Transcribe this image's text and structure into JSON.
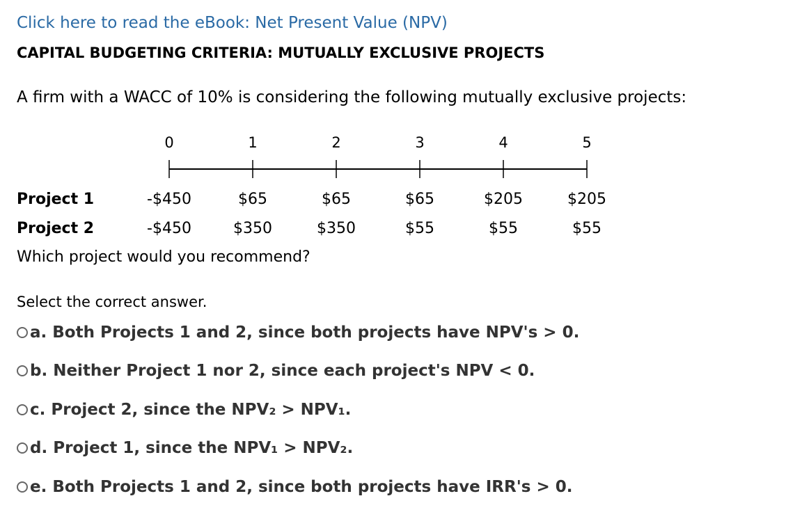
{
  "ebook_link": "Click here to read the eBook: Net Present Value (NPV)",
  "heading": "CAPITAL BUDGETING CRITERIA: MUTUALLY EXCLUSIVE PROJECTS",
  "intro": "A firm with a WACC of 10% is considering the following mutually exclusive projects:",
  "timeline": {
    "periods": [
      "0",
      "1",
      "2",
      "3",
      "4",
      "5"
    ]
  },
  "projects": [
    {
      "label": "Project 1",
      "cash_flows": [
        "-$450",
        "$65",
        "$65",
        "$65",
        "$205",
        "$205"
      ]
    },
    {
      "label": "Project 2",
      "cash_flows": [
        "-$450",
        "$350",
        "$350",
        "$55",
        "$55",
        "$55"
      ]
    }
  ],
  "question": "Which project would you recommend?",
  "select_label": "Select the correct answer.",
  "options": [
    "a. Both Projects 1 and 2, since both projects have NPV's > 0.",
    "b. Neither Project 1 nor 2, since each project's NPV < 0.",
    "c. Project 2, since the NPV₂ > NPV₁.",
    "d. Project 1, since the NPV₁ > NPV₂.",
    "e. Both Projects 1 and 2, since both projects have IRR's > 0."
  ]
}
